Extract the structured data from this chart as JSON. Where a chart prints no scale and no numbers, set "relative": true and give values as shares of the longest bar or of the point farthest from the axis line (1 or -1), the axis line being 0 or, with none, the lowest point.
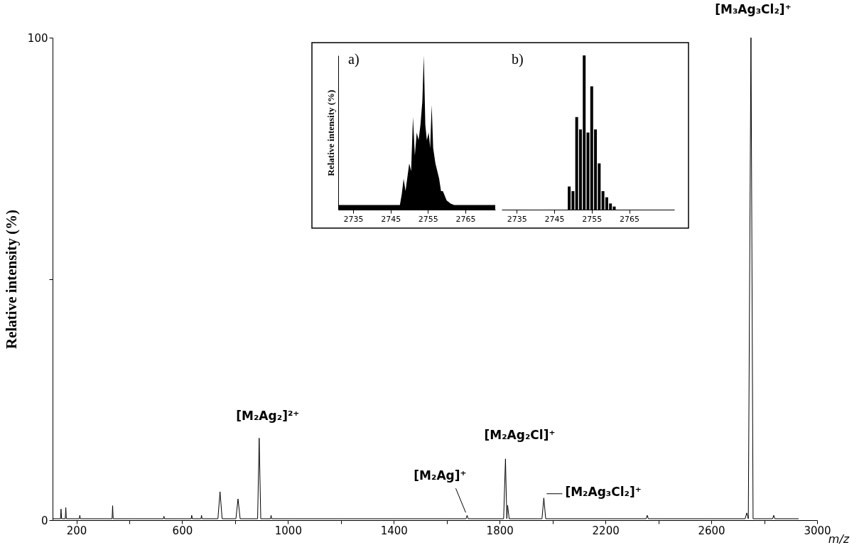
{
  "chart_data": [
    {
      "type": "line",
      "xlabel": "m/z",
      "ylabel": "Relative intensity (%)",
      "color": "#000000",
      "x": [
        110,
        140,
        142,
        144,
        158,
        160,
        162,
        211,
        213,
        215,
        335,
        337,
        339,
        529,
        531,
        533,
        634,
        636,
        638,
        671,
        673,
        675,
        735,
        743,
        751,
        803,
        811,
        819,
        885,
        891,
        897,
        934,
        936,
        938,
        1673,
        1677,
        1681,
        1815,
        1822,
        1827,
        1830,
        1836,
        1960,
        1967,
        1974,
        2354,
        2358,
        2362,
        2728,
        2734,
        2740,
        2750,
        2758,
        2832,
        2836,
        2840,
        2930
      ],
      "values": [
        0.3,
        0.3,
        2.3,
        0.3,
        0.3,
        2.6,
        0.3,
        0.3,
        1,
        0.3,
        0.3,
        3,
        0.3,
        0.3,
        0.8,
        0.3,
        0.3,
        1,
        0.3,
        0.3,
        1,
        0.3,
        0.3,
        5.9,
        0.3,
        0.3,
        4.4,
        0.3,
        0.3,
        17,
        0.3,
        0.3,
        1,
        0.3,
        0.3,
        1,
        0.3,
        0.3,
        12.7,
        0.3,
        3.1,
        0.3,
        0.3,
        4.6,
        0.3,
        0.3,
        1,
        0.3,
        0.3,
        1.5,
        0.3,
        100,
        0.3,
        0.3,
        1,
        0.3,
        0.3
      ],
      "xlim": [
        110,
        3000
      ],
      "xticks": [
        200,
        {
          "value": 400,
          "label": null
        },
        600,
        {
          "value": 800,
          "label": null
        },
        1000,
        {
          "value": 1200,
          "label": null
        },
        1400,
        {
          "value": 1600,
          "label": null
        },
        1800,
        {
          "value": 2000,
          "label": null
        },
        2200,
        {
          "value": 2400,
          "label": null
        },
        2600,
        {
          "value": 2800,
          "label": null
        },
        3000
      ],
      "ylim": [
        0,
        100
      ],
      "yticks": [
        0,
        {
          "value": 50,
          "label": null
        },
        100
      ],
      "annotations": [
        {
          "text": "[M₃Ag₃Cl₂]⁺",
          "x": 2750,
          "y": 100
        },
        {
          "text": "[M₂Ag₂]²⁺",
          "x": 891,
          "y": 17
        },
        {
          "text": "[M₂Ag]⁺",
          "x": 1677,
          "y": 1
        },
        {
          "text": "[M₂Ag₂Cl]⁺",
          "x": 1822,
          "y": 12.7
        },
        {
          "text": "[M₂Ag₃Cl₂]⁺",
          "x": 1967,
          "y": 4.6
        }
      ]
    },
    {
      "type": "area",
      "title": "a)",
      "ylabel": "Relative intensity (%)",
      "relative": true,
      "color": "#000000",
      "x": [
        2731,
        2740,
        2747.5,
        2748,
        2748.5,
        2749,
        2750,
        2750.5,
        2751,
        2751.5,
        2752,
        2752.5,
        2753,
        2753.5,
        2753.9,
        2754.3,
        2754.7,
        2755.2,
        2755.6,
        2756,
        2756.4,
        2757,
        2757.5,
        2758,
        2758.5,
        2759,
        2760,
        2761,
        2762,
        2773
      ],
      "values": [
        0.03,
        0.03,
        0.03,
        0.1,
        0.2,
        0.12,
        0.3,
        0.25,
        0.6,
        0.35,
        0.5,
        0.45,
        0.55,
        0.7,
        1.0,
        0.55,
        0.45,
        0.5,
        0.4,
        0.68,
        0.4,
        0.3,
        0.25,
        0.2,
        0.12,
        0.12,
        0.06,
        0.04,
        0.03,
        0.03
      ],
      "xlim": [
        2731,
        2773
      ],
      "xticks": [
        2735,
        2745,
        2755,
        2765
      ]
    },
    {
      "type": "bar",
      "title": "b)",
      "relative": true,
      "color": "#000000",
      "x": [
        2749,
        2750,
        2751,
        2752,
        2753,
        2754,
        2755,
        2756,
        2757,
        2758,
        2759,
        2760,
        2761
      ],
      "values": [
        0.15,
        0.12,
        0.6,
        0.52,
        1.0,
        0.5,
        0.8,
        0.52,
        0.3,
        0.12,
        0.08,
        0.04,
        0.02
      ],
      "xlim": [
        2731,
        2777
      ],
      "xticks": [
        2735,
        2745,
        2755,
        2765
      ]
    }
  ]
}
